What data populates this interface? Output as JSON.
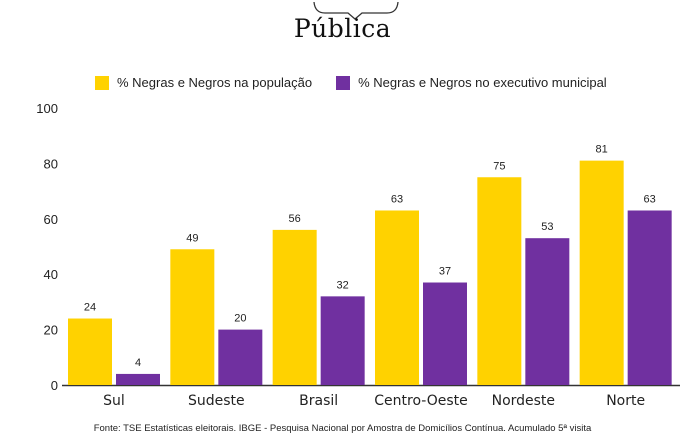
{
  "brand": {
    "name": "Pública"
  },
  "colors": {
    "population": "#FFD200",
    "executive": "#7030A0",
    "axis": "#333333"
  },
  "legend": [
    {
      "label": "% Negras e Negros na população",
      "color": "#FFD200"
    },
    {
      "label": "% Negras e Negros no executivo municipal",
      "color": "#7030A0"
    }
  ],
  "chart_data": {
    "type": "bar",
    "categories": [
      "Sul",
      "Sudeste",
      "Brasil",
      "Centro-Oeste",
      "Nordeste",
      "Norte"
    ],
    "series": [
      {
        "name": "% Negras e Negros na população",
        "values": [
          24,
          49,
          56,
          63,
          75,
          81
        ]
      },
      {
        "name": "% Negras e Negros no executivo municipal",
        "values": [
          4,
          20,
          32,
          37,
          53,
          63
        ]
      }
    ],
    "y_ticks": [
      "0",
      "20",
      "40",
      "60",
      "80",
      "100"
    ],
    "ylim": [
      0,
      100
    ],
    "grid": false,
    "legend_position": "top"
  },
  "source": "Fonte: TSE Estatísticas eleitorais. IBGE - Pesquisa Nacional por Amostra de Domicílios Contínua. Acumulado 5ª visita"
}
